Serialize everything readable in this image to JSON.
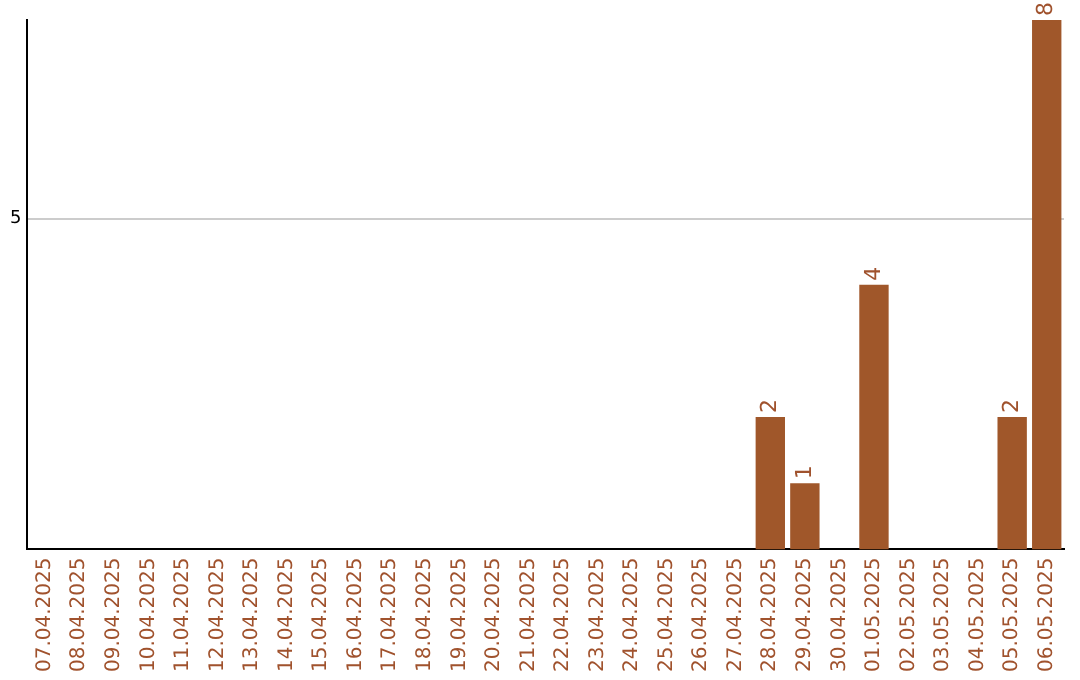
{
  "chart_data": {
    "type": "bar",
    "categories": [
      "07.04.2025",
      "08.04.2025",
      "09.04.2025",
      "10.04.2025",
      "11.04.2025",
      "12.04.2025",
      "13.04.2025",
      "14.04.2025",
      "15.04.2025",
      "16.04.2025",
      "17.04.2025",
      "18.04.2025",
      "19.04.2025",
      "20.04.2025",
      "21.04.2025",
      "22.04.2025",
      "23.04.2025",
      "24.04.2025",
      "25.04.2025",
      "26.04.2025",
      "27.04.2025",
      "28.04.2025",
      "29.04.2025",
      "30.04.2025",
      "01.05.2025",
      "02.05.2025",
      "03.05.2025",
      "04.05.2025",
      "05.05.2025",
      "06.05.2025"
    ],
    "values": [
      null,
      null,
      null,
      null,
      null,
      null,
      null,
      null,
      null,
      null,
      null,
      null,
      null,
      null,
      null,
      null,
      null,
      null,
      null,
      null,
      null,
      2,
      1,
      null,
      4,
      null,
      null,
      null,
      2,
      8
    ],
    "value_labels": [
      null,
      null,
      null,
      null,
      null,
      null,
      null,
      null,
      null,
      null,
      null,
      null,
      null,
      null,
      null,
      null,
      null,
      null,
      null,
      null,
      null,
      "2",
      "1",
      null,
      "4",
      null,
      null,
      null,
      "2",
      "8"
    ],
    "color": "#a0572a",
    "ylim": [
      0,
      8
    ],
    "yticks": [
      5
    ],
    "grid": "y"
  }
}
